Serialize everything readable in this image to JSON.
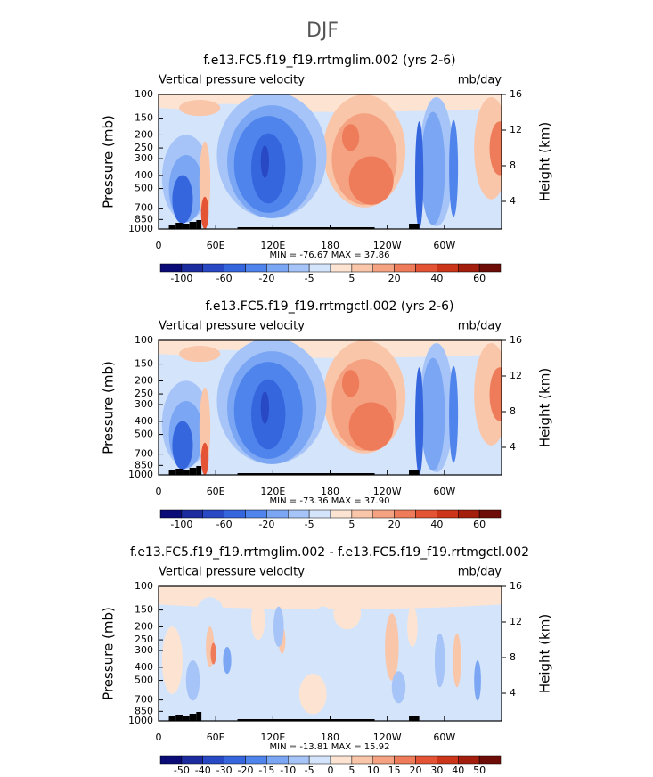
{
  "figure_title": "DJF",
  "chart_data": [
    {
      "type": "contour",
      "title": "f.e13.FC5.f19_f19.rrtmglim.002 (yrs 2-6)",
      "subtitle_left": "Vertical pressure velocity",
      "subtitle_right": "mb/day",
      "ylabel": "Pressure (mb)",
      "y2label": "Height (km)",
      "xlim": [
        0,
        360
      ],
      "xticks": [
        0,
        {
          "value": 60,
          "label": "60E"
        },
        {
          "value": 120,
          "label": "120E"
        },
        180,
        {
          "value": 240,
          "label": "120W"
        },
        {
          "value": 300,
          "label": "60W"
        }
      ],
      "ylim": [
        1000,
        100
      ],
      "yscale": "log",
      "yticks": [
        100,
        150,
        200,
        250,
        300,
        400,
        500,
        700,
        850,
        1000
      ],
      "y2lim": [
        0.9,
        16
      ],
      "y2ticks": [
        4,
        8,
        12,
        16
      ],
      "annotation": "MIN = -76.67  MAX =  37.86",
      "colorbar": {
        "colors": [
          "#0b0b78",
          "#1c2c9e",
          "#2848c4",
          "#3566de",
          "#4f84ec",
          "#7aa6f3",
          "#a6c4f7",
          "#d4e4fb",
          "#fde4d2",
          "#f9c6aa",
          "#f4a281",
          "#ee7b59",
          "#e45434",
          "#cc3519",
          "#a41e0e",
          "#6e0d07"
        ],
        "labels": [
          -100,
          -60,
          -20,
          -5,
          5,
          20,
          40,
          60
        ]
      }
    },
    {
      "type": "contour",
      "title": "f.e13.FC5.f19_f19.rrtmgctl.002 (yrs 2-6)",
      "subtitle_left": "Vertical pressure velocity",
      "subtitle_right": "mb/day",
      "ylabel": "Pressure (mb)",
      "y2label": "Height (km)",
      "xlim": [
        0,
        360
      ],
      "xticks": [
        0,
        {
          "value": 60,
          "label": "60E"
        },
        {
          "value": 120,
          "label": "120E"
        },
        180,
        {
          "value": 240,
          "label": "120W"
        },
        {
          "value": 300,
          "label": "60W"
        }
      ],
      "ylim": [
        1000,
        100
      ],
      "yscale": "log",
      "yticks": [
        100,
        150,
        200,
        250,
        300,
        400,
        500,
        700,
        850,
        1000
      ],
      "y2lim": [
        0.9,
        16
      ],
      "y2ticks": [
        4,
        8,
        12,
        16
      ],
      "annotation": "MIN = -73.36  MAX =  37.90",
      "colorbar": {
        "colors": [
          "#0b0b78",
          "#1c2c9e",
          "#2848c4",
          "#3566de",
          "#4f84ec",
          "#7aa6f3",
          "#a6c4f7",
          "#d4e4fb",
          "#fde4d2",
          "#f9c6aa",
          "#f4a281",
          "#ee7b59",
          "#e45434",
          "#cc3519",
          "#a41e0e",
          "#6e0d07"
        ],
        "labels": [
          -100,
          -60,
          -20,
          -5,
          5,
          20,
          40,
          60
        ]
      }
    },
    {
      "type": "contour",
      "title": "f.e13.FC5.f19_f19.rrtmglim.002 - f.e13.FC5.f19_f19.rrtmgctl.002",
      "subtitle_left": "Vertical pressure velocity",
      "subtitle_right": "mb/day",
      "ylabel": "Pressure (mb)",
      "y2label": "Height (km)",
      "xlim": [
        0,
        360
      ],
      "xticks": [
        0,
        {
          "value": 60,
          "label": "60E"
        },
        {
          "value": 120,
          "label": "120E"
        },
        180,
        {
          "value": 240,
          "label": "120W"
        },
        {
          "value": 300,
          "label": "60W"
        }
      ],
      "ylim": [
        1000,
        100
      ],
      "yscale": "log",
      "yticks": [
        100,
        150,
        200,
        250,
        300,
        400,
        500,
        700,
        850,
        1000
      ],
      "y2lim": [
        0.9,
        16
      ],
      "y2ticks": [
        4,
        8,
        12,
        16
      ],
      "annotation": "MIN = -13.81  MAX =  15.92",
      "colorbar": {
        "colors": [
          "#0b0b78",
          "#1c2c9e",
          "#2848c4",
          "#3566de",
          "#4f84ec",
          "#7aa6f3",
          "#a6c4f7",
          "#d4e4fb",
          "#fde4d2",
          "#f9c6aa",
          "#f4a281",
          "#ee7b59",
          "#e45434",
          "#cc3519",
          "#a41e0e",
          "#6e0d07"
        ],
        "labels": [
          -50,
          -40,
          -30,
          -20,
          -15,
          -10,
          -5,
          0,
          5,
          10,
          15,
          20,
          30,
          40,
          50
        ]
      }
    }
  ]
}
